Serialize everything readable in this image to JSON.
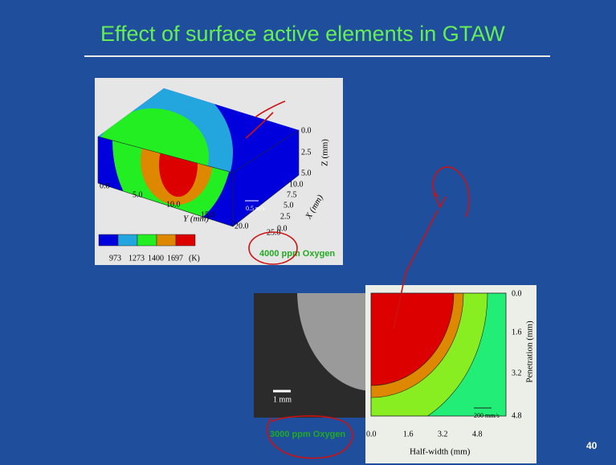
{
  "title": "Effect of surface active elements in GTAW",
  "figure_top": {
    "y_ticks": [
      "0.0",
      "5.0",
      "10.0",
      "15.0",
      "20.0",
      "25.0"
    ],
    "y_label": "Y (mm)",
    "z_ticks": [
      "0.0",
      "2.5",
      "5.0"
    ],
    "z_label": "Z (mm)",
    "x_ticks": [
      "10.0",
      "7.5",
      "5.0",
      "2.5",
      "0.0"
    ],
    "x_label": "X (mm)",
    "velocity": "0.5 m/s",
    "legend": [
      "973",
      "1273",
      "1400",
      "1697",
      "(K)"
    ],
    "caption": "4000 ppm Oxygen"
  },
  "figure_bottom": {
    "scale_bar": "1 mm",
    "caption": "3000 ppm Oxygen",
    "x_ticks": [
      "0.0",
      "1.6",
      "3.2",
      "4.8"
    ],
    "x_label": "Half-width (mm)",
    "y_ticks": [
      "0.0",
      "1.6",
      "3.2",
      "4.8"
    ],
    "y_label": "Penetration (mm)",
    "velocity": "200 mm/s"
  },
  "page_number": "40"
}
